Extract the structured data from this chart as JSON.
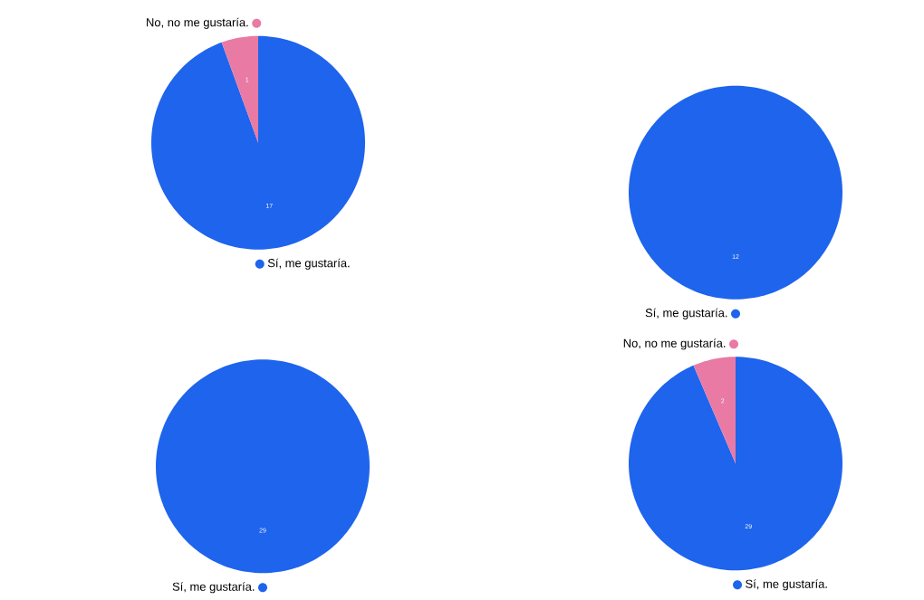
{
  "chart_data": [
    {
      "type": "pie",
      "categories": [
        "Sí, me gustaría.",
        "No, no me gustaría."
      ],
      "values": [
        17,
        1
      ],
      "colors": [
        "#1e64ec",
        "#e87aa4"
      ],
      "data_labels": true
    },
    {
      "type": "pie",
      "categories": [
        "Sí, me gustaría."
      ],
      "values": [
        12
      ],
      "colors": [
        "#1e64ec"
      ],
      "data_labels": true
    },
    {
      "type": "pie",
      "categories": [
        "Sí, me gustaría."
      ],
      "values": [
        29
      ],
      "colors": [
        "#1e64ec"
      ],
      "data_labels": true
    },
    {
      "type": "pie",
      "categories": [
        "Sí, me gustaría.",
        "No, no me gustaría."
      ],
      "values": [
        29,
        2
      ],
      "colors": [
        "#1e64ec",
        "#e87aa4"
      ],
      "data_labels": true
    }
  ]
}
